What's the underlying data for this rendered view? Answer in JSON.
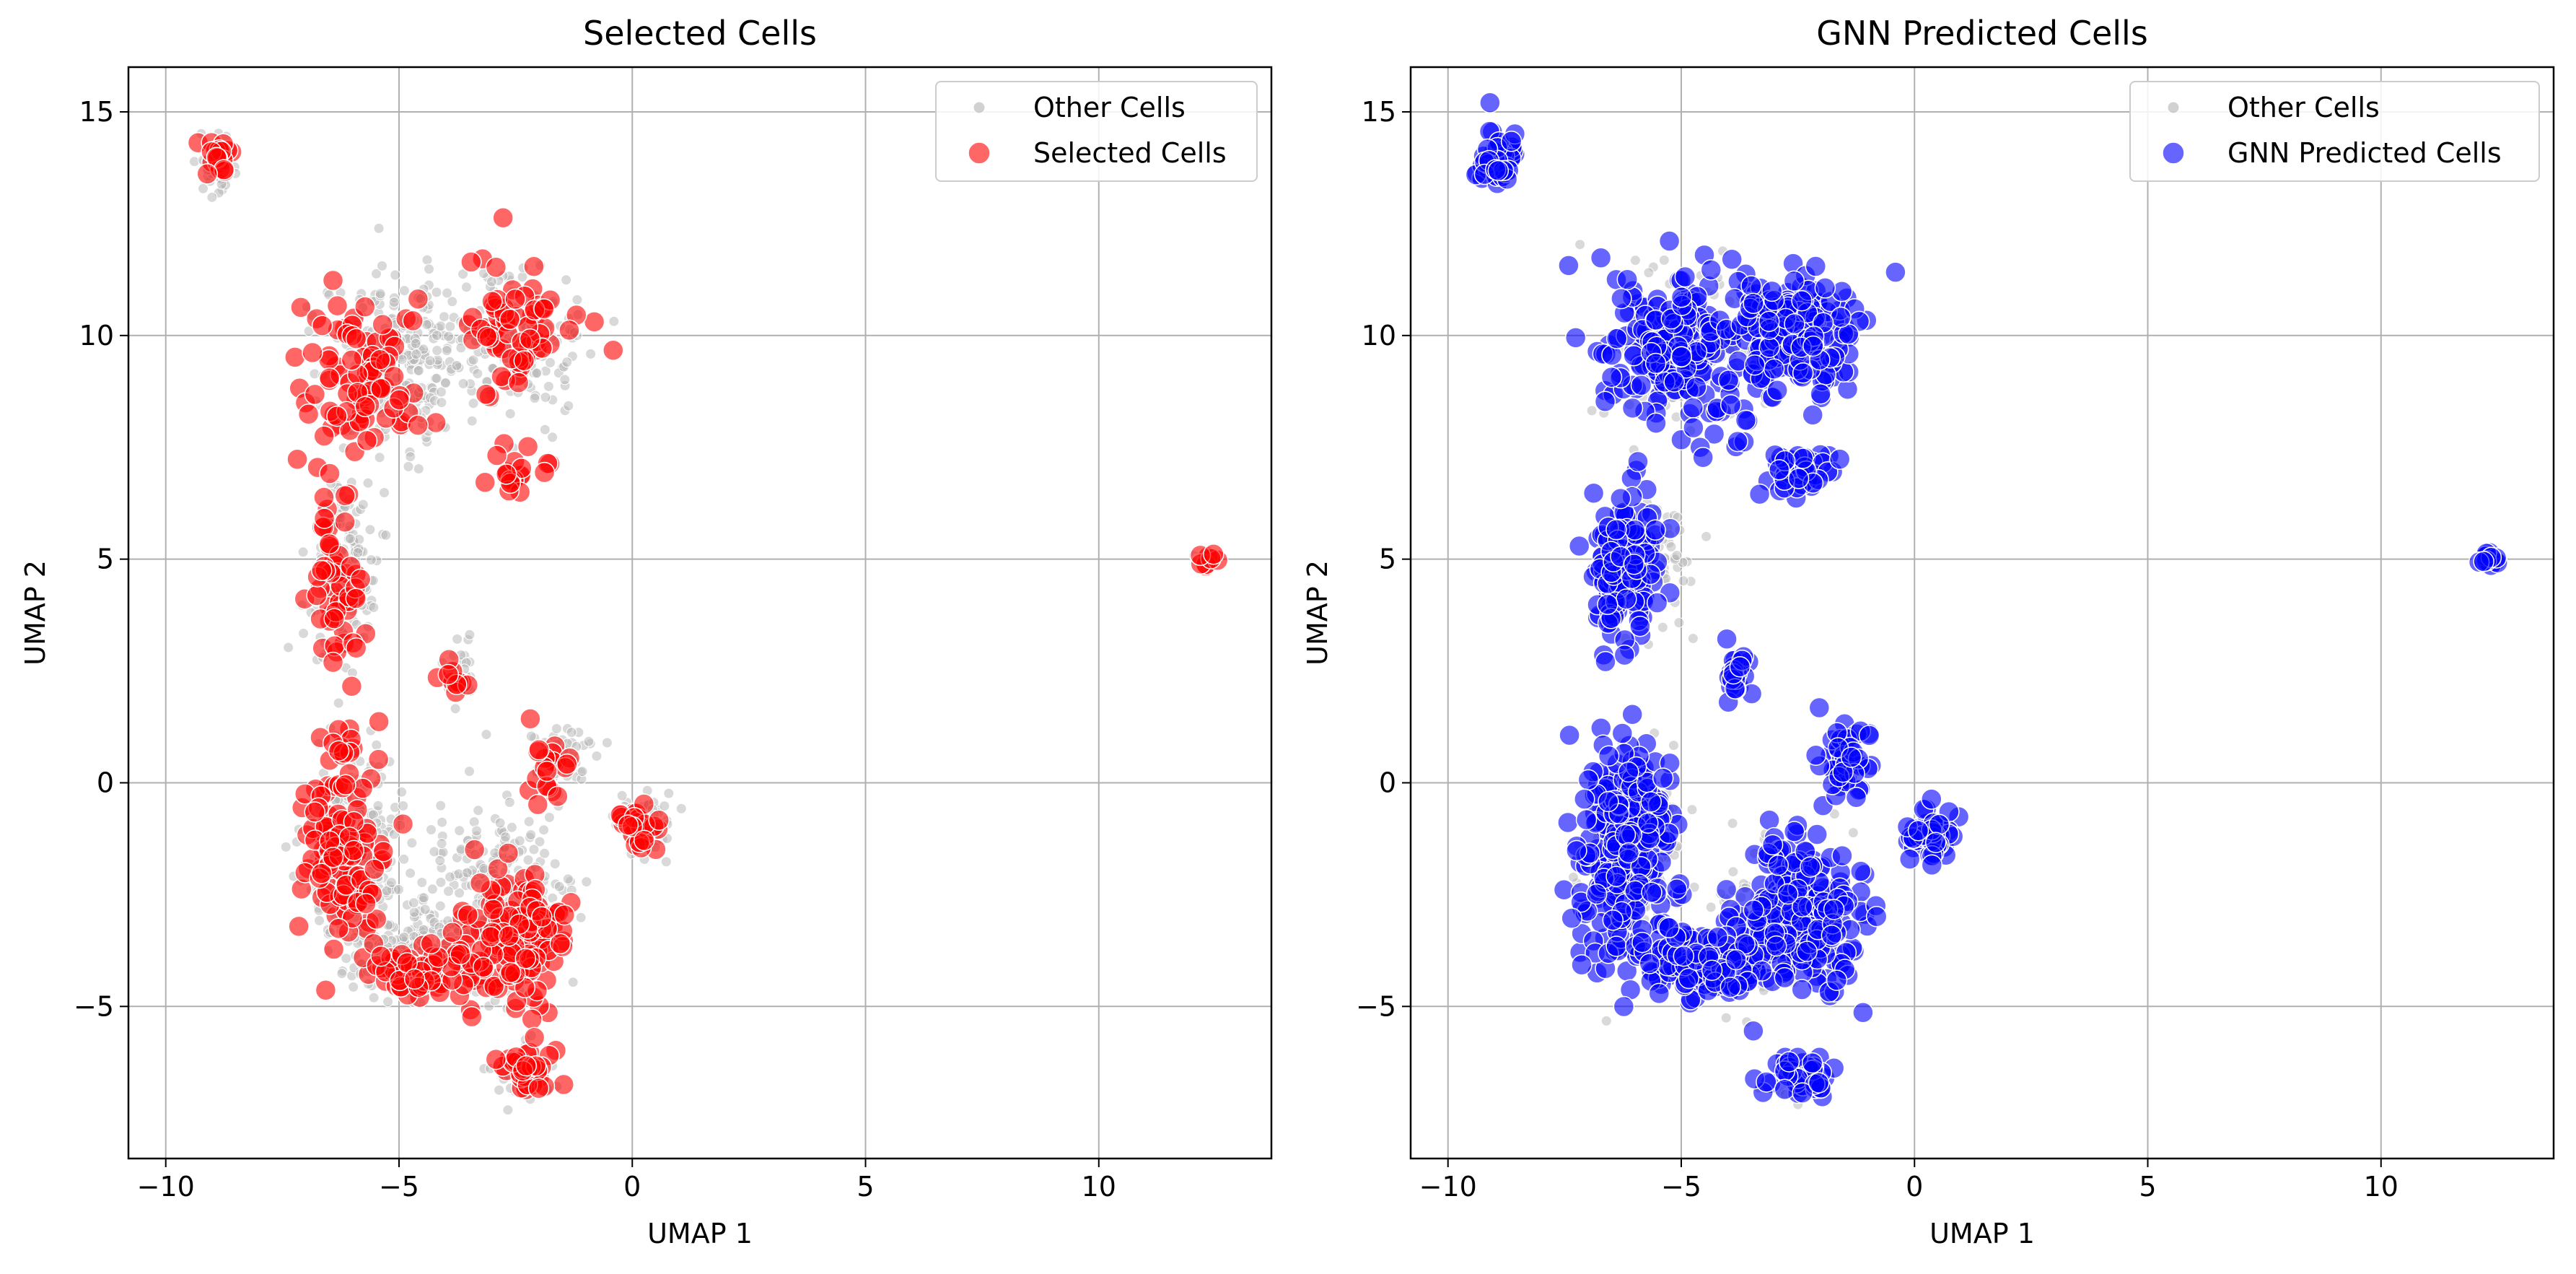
{
  "figure": {
    "background": "#ffffff"
  },
  "chart_data": [
    {
      "type": "scatter",
      "title": "Selected Cells",
      "xlabel": "UMAP 1",
      "ylabel": "UMAP 2",
      "xlim": [
        -10.8,
        13.7
      ],
      "ylim": [
        -8.4,
        16.0
      ],
      "xticks": [
        -10,
        -5,
        0,
        5,
        10
      ],
      "xtick_labels": [
        "−10",
        "−5",
        "0",
        "5",
        "10"
      ],
      "yticks": [
        -5,
        0,
        5,
        10,
        15
      ],
      "ytick_labels": [
        "−5",
        "0",
        "5",
        "10",
        "15"
      ],
      "grid": true,
      "legend_position": "top-right",
      "series": [
        {
          "name": "Other Cells",
          "color": "#b3b3b3",
          "alpha": 0.5,
          "marker": "small",
          "clusters": [
            {
              "cx": -5.0,
              "cy": 9.5,
              "sx": 1.3,
              "sy": 1.6,
              "n": 260
            },
            {
              "cx": -2.5,
              "cy": 9.8,
              "sx": 1.1,
              "sy": 1.3,
              "n": 170
            },
            {
              "cx": -6.2,
              "cy": 4.8,
              "sx": 0.6,
              "sy": 1.6,
              "n": 160
            },
            {
              "cx": -6.0,
              "cy": -1.5,
              "sx": 0.8,
              "sy": 2.0,
              "n": 300
            },
            {
              "cx": -2.8,
              "cy": -2.5,
              "sx": 1.2,
              "sy": 1.6,
              "n": 260
            },
            {
              "cx": -4.5,
              "cy": -3.8,
              "sx": 1.2,
              "sy": 0.8,
              "n": 200
            },
            {
              "cx": -2.4,
              "cy": -6.4,
              "sx": 0.5,
              "sy": 0.5,
              "n": 50
            },
            {
              "cx": 0.3,
              "cy": -1.0,
              "sx": 0.4,
              "sy": 0.6,
              "n": 55
            },
            {
              "cx": -1.5,
              "cy": 0.5,
              "sx": 0.6,
              "sy": 0.7,
              "n": 60
            },
            {
              "cx": -3.7,
              "cy": 2.5,
              "sx": 0.3,
              "sy": 0.6,
              "n": 30
            },
            {
              "cx": -8.9,
              "cy": 13.8,
              "sx": 0.4,
              "sy": 0.6,
              "n": 35
            },
            {
              "cx": 12.3,
              "cy": 5.0,
              "sx": 0.2,
              "sy": 0.15,
              "n": 15
            }
          ]
        },
        {
          "name": "Selected Cells",
          "color": "#ff0000",
          "alpha": 0.6,
          "marker": "large",
          "clusters": [
            {
              "cx": -5.8,
              "cy": 9.0,
              "sx": 1.1,
              "sy": 1.5,
              "n": 90
            },
            {
              "cx": -2.5,
              "cy": 10.2,
              "sx": 1.0,
              "sy": 1.2,
              "n": 70
            },
            {
              "cx": -2.5,
              "cy": 7.0,
              "sx": 0.6,
              "sy": 0.5,
              "n": 20
            },
            {
              "cx": -6.3,
              "cy": 4.5,
              "sx": 0.5,
              "sy": 1.5,
              "n": 55
            },
            {
              "cx": -6.2,
              "cy": -1.5,
              "sx": 0.7,
              "sy": 2.0,
              "n": 130
            },
            {
              "cx": -2.5,
              "cy": -3.5,
              "sx": 1.0,
              "sy": 1.2,
              "n": 140
            },
            {
              "cx": -4.5,
              "cy": -4.2,
              "sx": 0.9,
              "sy": 0.5,
              "n": 60
            },
            {
              "cx": -2.3,
              "cy": -6.4,
              "sx": 0.5,
              "sy": 0.4,
              "n": 35
            },
            {
              "cx": 0.2,
              "cy": -1.0,
              "sx": 0.35,
              "sy": 0.5,
              "n": 30
            },
            {
              "cx": -1.8,
              "cy": 0.5,
              "sx": 0.4,
              "sy": 0.7,
              "n": 20
            },
            {
              "cx": -3.8,
              "cy": 2.5,
              "sx": 0.2,
              "sy": 0.5,
              "n": 10
            },
            {
              "cx": -8.9,
              "cy": 14.0,
              "sx": 0.3,
              "sy": 0.4,
              "n": 18
            },
            {
              "cx": 12.3,
              "cy": 5.0,
              "sx": 0.2,
              "sy": 0.15,
              "n": 8
            }
          ]
        }
      ]
    },
    {
      "type": "scatter",
      "title": "GNN Predicted Cells",
      "xlabel": "UMAP 1",
      "ylabel": "UMAP 2",
      "xlim": [
        -10.8,
        13.7
      ],
      "ylim": [
        -8.4,
        16.0
      ],
      "xticks": [
        -10,
        -5,
        0,
        5,
        10
      ],
      "xtick_labels": [
        "−10",
        "−5",
        "0",
        "5",
        "10"
      ],
      "yticks": [
        -5,
        0,
        5,
        10,
        15
      ],
      "ytick_labels": [
        "−5",
        "0",
        "5",
        "10",
        "15"
      ],
      "grid": true,
      "legend_position": "top-right",
      "series": [
        {
          "name": "Other Cells",
          "color": "#b3b3b3",
          "alpha": 0.5,
          "marker": "small",
          "clusters": [
            {
              "cx": -5.0,
              "cy": 9.5,
              "sx": 1.3,
              "sy": 1.6,
              "n": 120
            },
            {
              "cx": -6.0,
              "cy": -1.5,
              "sx": 0.8,
              "sy": 2.0,
              "n": 120
            },
            {
              "cx": -3.0,
              "cy": -3.0,
              "sx": 1.2,
              "sy": 1.5,
              "n": 120
            },
            {
              "cx": -5.5,
              "cy": 5.0,
              "sx": 0.6,
              "sy": 1.5,
              "n": 60
            },
            {
              "cx": -2.6,
              "cy": -6.6,
              "sx": 0.5,
              "sy": 0.5,
              "n": 25
            }
          ]
        },
        {
          "name": "GNN Predicted Cells",
          "color": "#0000ff",
          "alpha": 0.6,
          "marker": "large",
          "clusters": [
            {
              "cx": -5.0,
              "cy": 9.6,
              "sx": 1.3,
              "sy": 1.5,
              "n": 230
            },
            {
              "cx": -2.4,
              "cy": 10.0,
              "sx": 1.0,
              "sy": 1.2,
              "n": 150
            },
            {
              "cx": -2.5,
              "cy": 7.0,
              "sx": 0.7,
              "sy": 0.5,
              "n": 40
            },
            {
              "cx": -6.2,
              "cy": 4.8,
              "sx": 0.6,
              "sy": 1.6,
              "n": 140
            },
            {
              "cx": -6.2,
              "cy": -1.5,
              "sx": 0.8,
              "sy": 2.1,
              "n": 300
            },
            {
              "cx": -2.5,
              "cy": -3.0,
              "sx": 1.1,
              "sy": 1.4,
              "n": 260
            },
            {
              "cx": -4.5,
              "cy": -4.0,
              "sx": 1.0,
              "sy": 0.6,
              "n": 120
            },
            {
              "cx": -2.5,
              "cy": -6.5,
              "sx": 0.5,
              "sy": 0.4,
              "n": 45
            },
            {
              "cx": 0.3,
              "cy": -1.2,
              "sx": 0.4,
              "sy": 0.55,
              "n": 50
            },
            {
              "cx": -1.5,
              "cy": 0.5,
              "sx": 0.5,
              "sy": 0.7,
              "n": 50
            },
            {
              "cx": -3.8,
              "cy": 2.4,
              "sx": 0.25,
              "sy": 0.6,
              "n": 22
            },
            {
              "cx": -8.9,
              "cy": 13.9,
              "sx": 0.35,
              "sy": 0.55,
              "n": 45
            },
            {
              "cx": 12.3,
              "cy": 5.0,
              "sx": 0.2,
              "sy": 0.15,
              "n": 18
            }
          ]
        }
      ]
    }
  ]
}
